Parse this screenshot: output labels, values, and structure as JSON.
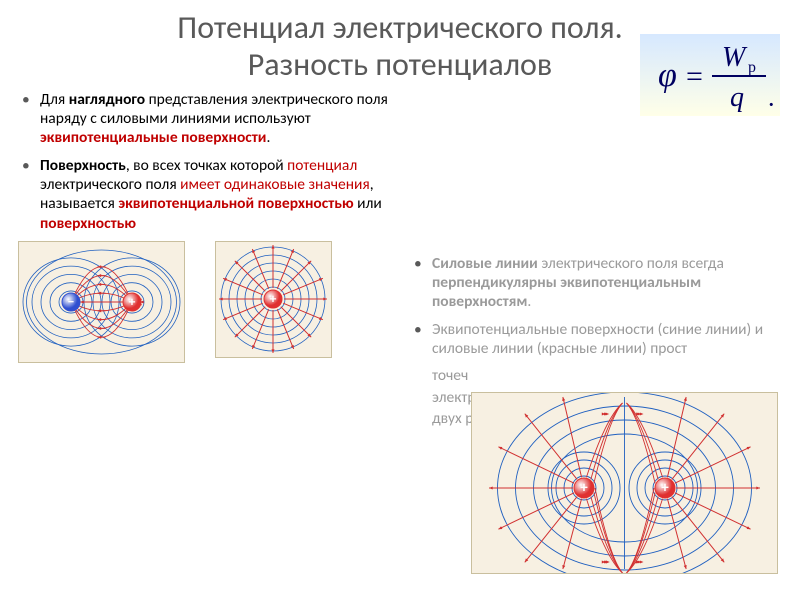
{
  "title_line1": "Потенциал электрического поля.",
  "title_line2": "Разность потенциалов",
  "formula": {
    "lhs": "φ",
    "numerator": "W",
    "num_sub": "p",
    "denominator": "q",
    "bg_gradient_top": "#d6e8ff",
    "bg_gradient_bottom": "#ffffe8",
    "text_color": "#000060"
  },
  "left_bullets": [
    {
      "parts": [
        {
          "text": "Для ",
          "cls": ""
        },
        {
          "text": "наглядного",
          "cls": "bold"
        },
        {
          "text": " представления электрического поля наряду с силовыми линиями используют ",
          "cls": ""
        },
        {
          "text": "эквипотенциальные поверхности",
          "cls": "bold red"
        },
        {
          "text": ".",
          "cls": ""
        }
      ]
    },
    {
      "parts": [
        {
          "text": "Поверхность",
          "cls": "bold"
        },
        {
          "text": ", во всех точках которой ",
          "cls": ""
        },
        {
          "text": "потенциал",
          "cls": "red"
        },
        {
          "text": " электрического поля ",
          "cls": ""
        },
        {
          "text": "имеет одинаковые значения",
          "cls": "red"
        },
        {
          "text": ", называется ",
          "cls": ""
        },
        {
          "text": "эквипотенциальной поверхностью",
          "cls": "bold red"
        },
        {
          "text": " или ",
          "cls": ""
        },
        {
          "text": "поверхностью",
          "cls": "bold red"
        },
        {
          "text": "",
          "cls": ""
        }
      ]
    }
  ],
  "right_bullets": [
    {
      "parts": [
        {
          "text": "Силовые линии",
          "cls": "bold gray"
        },
        {
          "text": " электрического поля всегда ",
          "cls": "gray"
        },
        {
          "text": "перпендикулярны эквипотенциальным поверхностям",
          "cls": "bold gray"
        },
        {
          "text": ".",
          "cls": "gray"
        }
      ]
    },
    {
      "parts": [
        {
          "text": "Эквипотенциальные поверхности (синие линии) и силовые линии (красные линии) прост                                              ",
          "cls": "gray"
        }
      ]
    },
    {
      "parts": [
        {
          "text": "точеч",
          "cls": "gray"
        }
      ]
    },
    {
      "parts": [
        {
          "text": "электр",
          "cls": "gray"
        }
      ]
    },
    {
      "parts": [
        {
          "text": "двух р",
          "cls": "gray"
        }
      ]
    }
  ],
  "diagrams": {
    "bg": "#f7f0e2",
    "field_line_color": "#d13030",
    "equipotential_color": "#2060c0",
    "pos_charge_fill": "#e03030",
    "neg_charge_fill": "#3050d0",
    "charge_highlight": "#ffffff",
    "arrow_color": "#d13030"
  }
}
